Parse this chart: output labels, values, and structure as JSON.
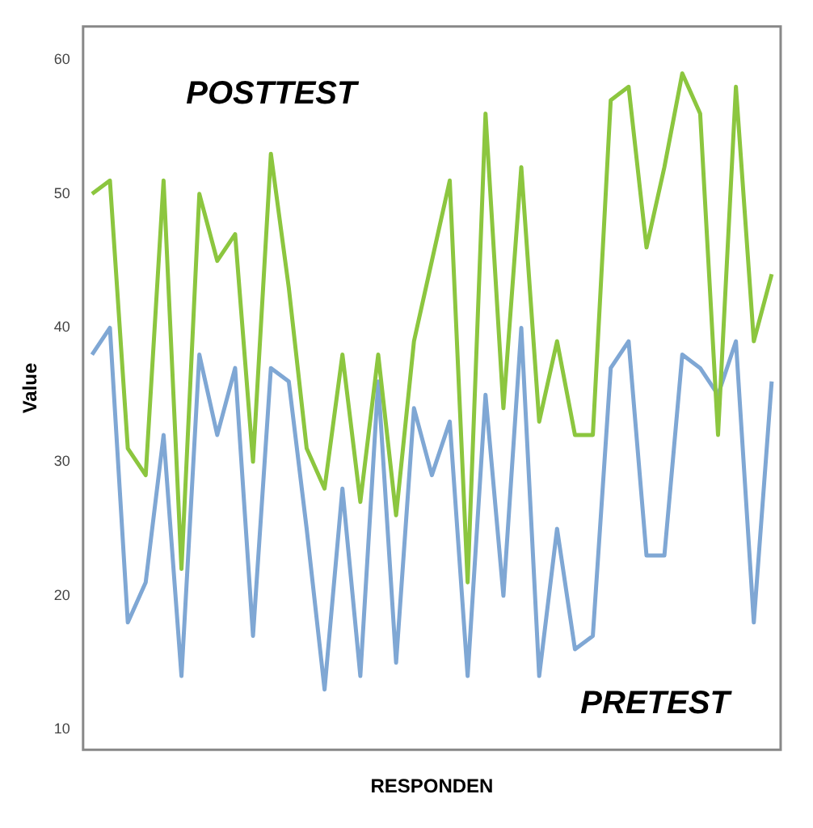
{
  "chart_data": {
    "type": "line",
    "xlabel": "RESPONDEN",
    "ylabel": "Value",
    "categories": [
      null,
      null,
      null,
      null,
      null,
      null,
      null,
      null,
      null,
      null,
      null,
      null,
      null,
      null,
      null,
      null,
      null,
      null,
      null,
      null,
      null,
      null,
      null,
      null,
      null,
      null,
      null,
      null,
      null,
      null,
      null,
      null,
      null,
      null,
      null,
      null,
      null,
      null,
      null
    ],
    "series": [
      {
        "name": "POSTTEST",
        "color": "#8cc63f",
        "values": [
          50,
          51,
          31,
          29,
          51,
          22,
          50,
          45,
          47,
          30,
          53,
          43,
          31,
          28,
          38,
          27,
          38,
          26,
          39,
          45,
          51,
          21,
          56,
          34,
          52,
          33,
          39,
          32,
          32,
          57,
          58,
          46,
          52,
          59,
          56,
          32,
          58,
          39,
          44
        ]
      },
      {
        "name": "PRETEST",
        "color": "#7fa7d4",
        "values": [
          38,
          40,
          18,
          21,
          32,
          14,
          38,
          32,
          37,
          17,
          37,
          36,
          25,
          13,
          28,
          14,
          36,
          15,
          34,
          29,
          33,
          14,
          35,
          20,
          40,
          14,
          25,
          16,
          17,
          37,
          39,
          23,
          23,
          38,
          37,
          35,
          39,
          18,
          36
        ]
      }
    ],
    "ylim": [
      8.5,
      62.5
    ],
    "yticks": [
      10,
      20,
      30,
      40,
      50,
      60
    ],
    "grid": false,
    "legend": false,
    "marker": "none",
    "line_style": "solid"
  }
}
